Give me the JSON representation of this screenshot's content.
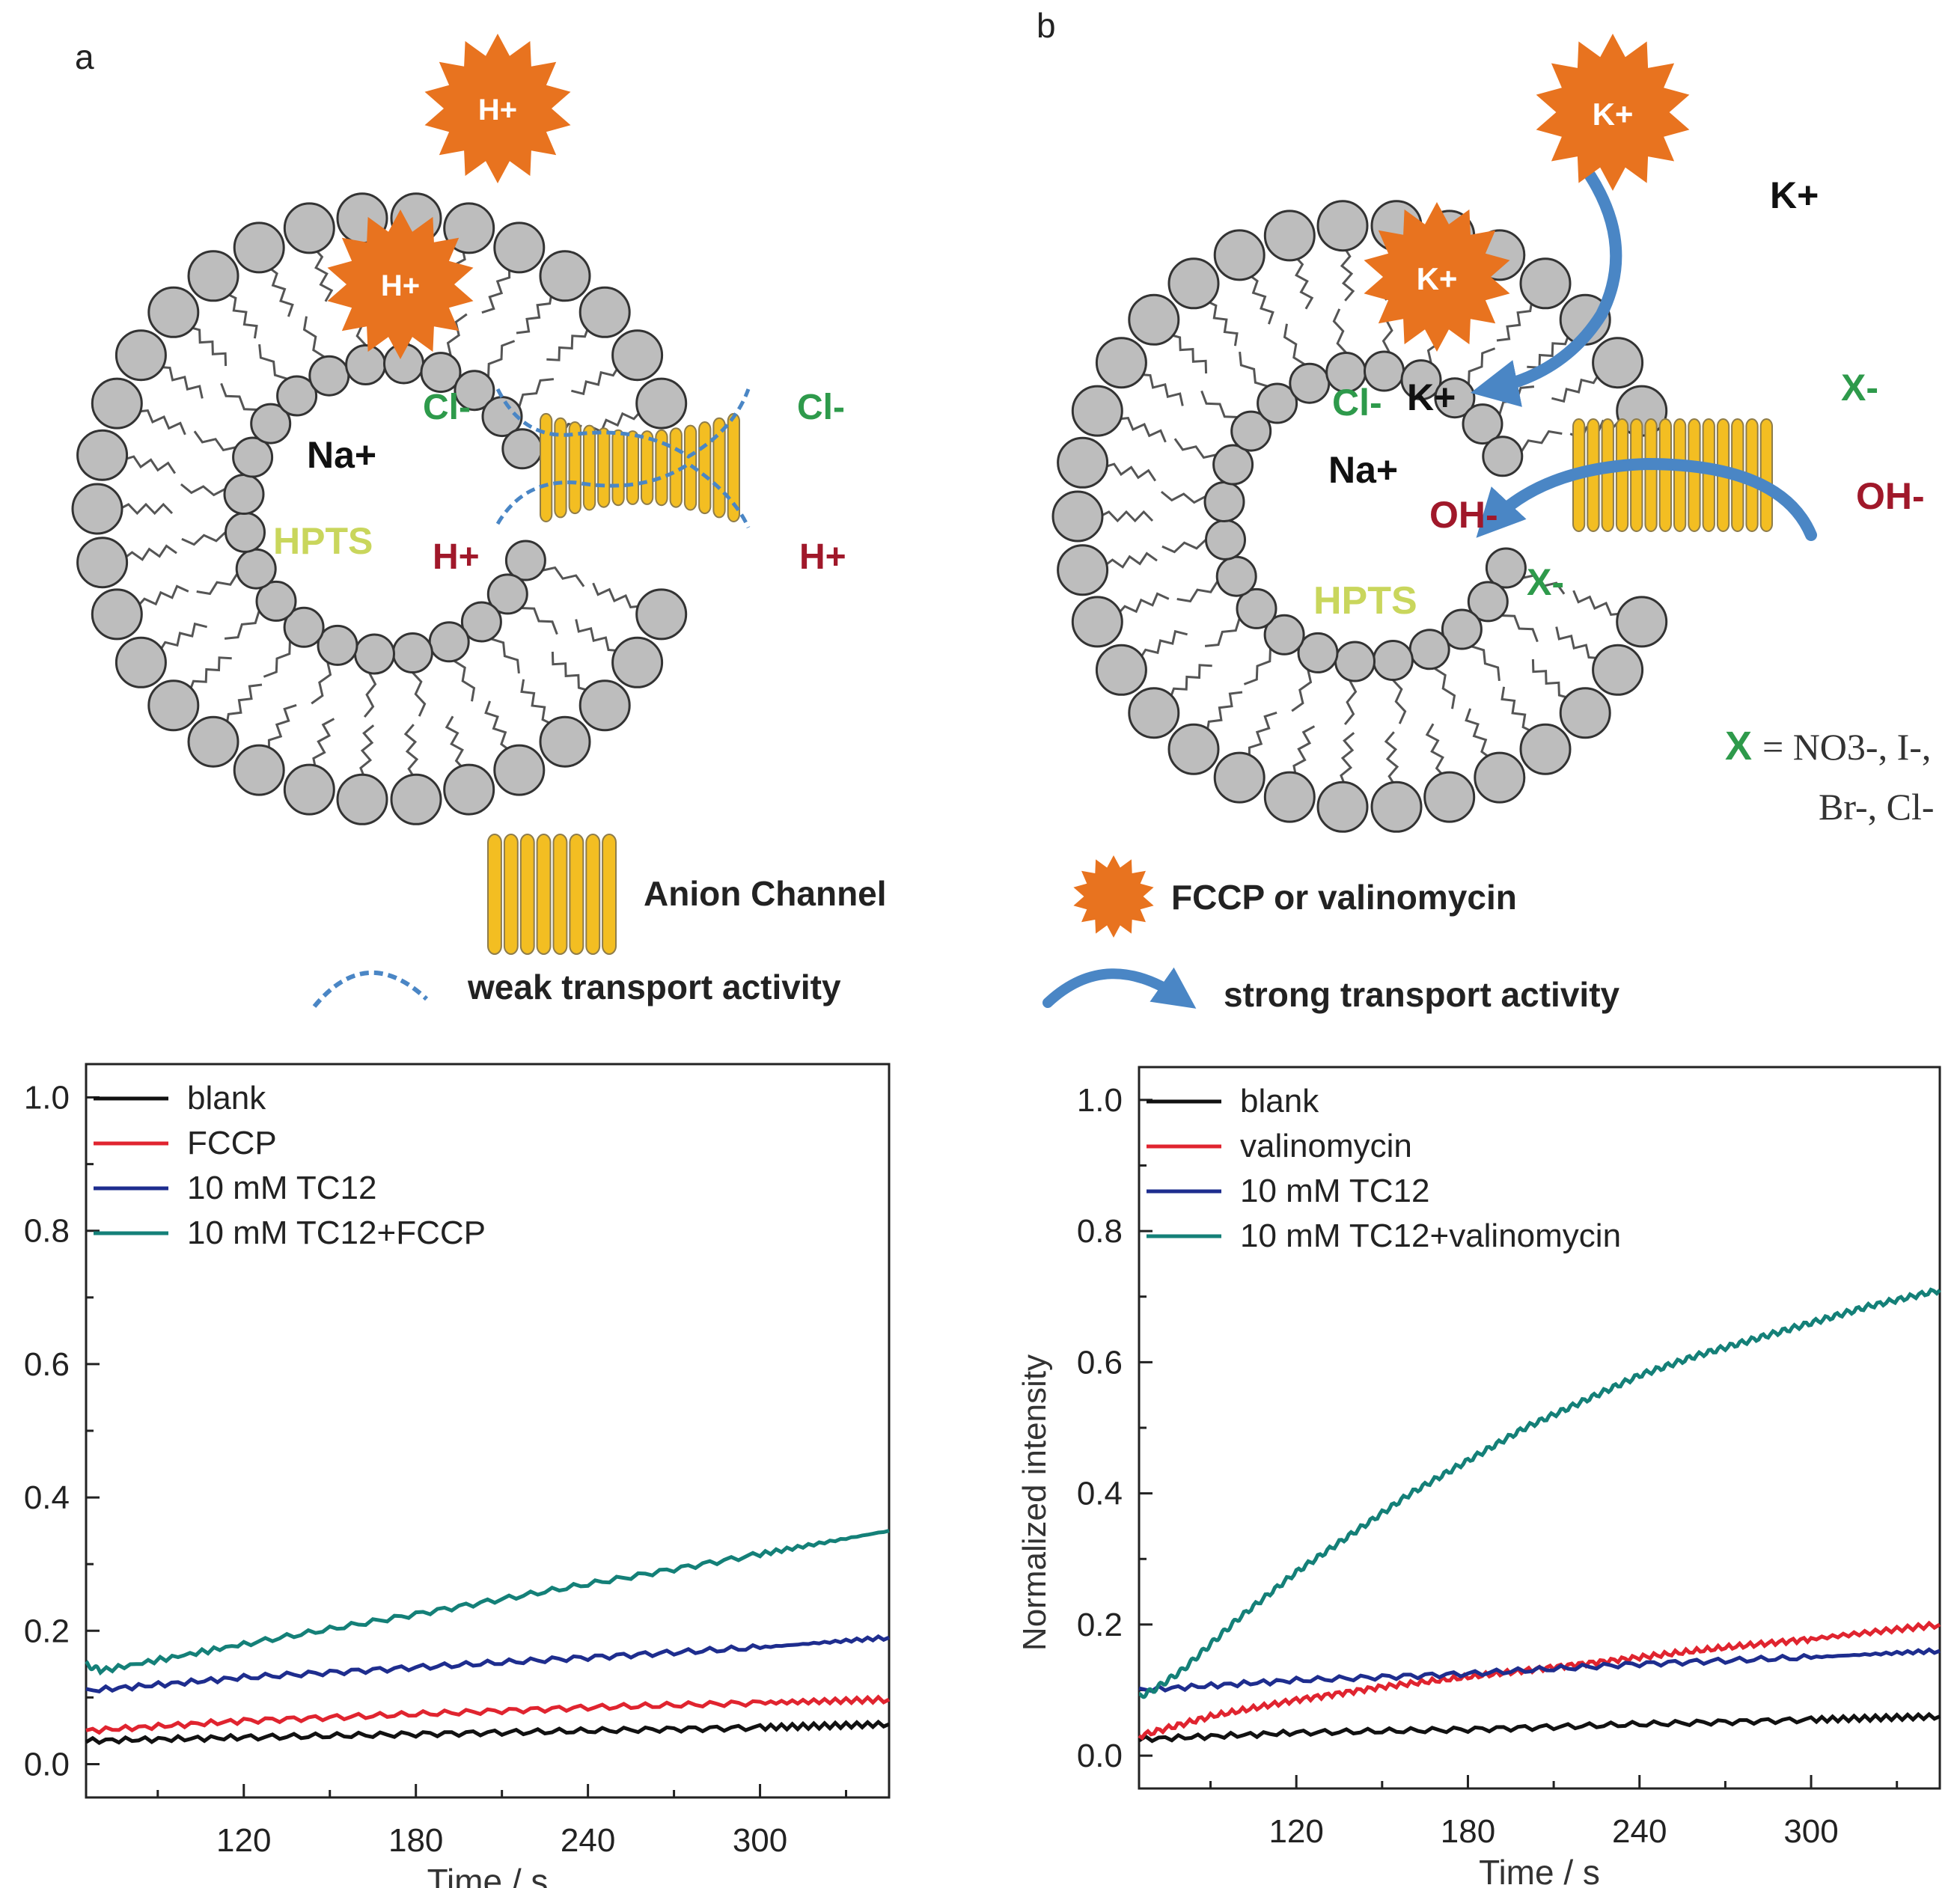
{
  "panel_a": {
    "label": "a",
    "carrier_outer": "H+",
    "carrier_inner": "H+",
    "ions": {
      "cl_in": "Cl-",
      "cl_out": "Cl-",
      "h_in": "H+",
      "h_out": "H+",
      "na": "Na+",
      "hpts": "HPTS"
    }
  },
  "panel_b": {
    "label": "b",
    "carrier_outer": "K+",
    "carrier_inner": "K+",
    "ions": {
      "k_out": "K+",
      "k_in": "K+",
      "cl_in": "Cl-",
      "x_out": "X-",
      "x_in": "X-",
      "oh_in": "OH-",
      "oh_out": "OH-",
      "na": "Na+",
      "hpts": "HPTS"
    },
    "x_def_lead": "X",
    "x_def_line1": "= NO3-, I-,",
    "x_def_line2": "Br-, Cl-"
  },
  "legend_keys": {
    "anion_channel": "Anion Channel",
    "carrier": "FCCP or valinomycin",
    "weak": "weak transport activity",
    "strong": "strong transport activity"
  },
  "colors": {
    "star": "#E8731F",
    "lipid_head": "#BDBDBD",
    "channel": "#F3BE22",
    "arrow": "#4A86C5",
    "green_ion": "#2E9A4B",
    "red_ion": "#A0182A",
    "hpts": "#C9D65C",
    "series_black": "#111111",
    "series_red": "#E0242F",
    "series_blue": "#1E2D8E",
    "series_teal": "#148078"
  },
  "chart_data": [
    {
      "type": "line",
      "title": "",
      "xlabel": "Time / s",
      "ylabel": "",
      "xlim": [
        65,
        345
      ],
      "ylim": [
        -0.05,
        1.05
      ],
      "xticks": [
        120,
        180,
        240,
        300
      ],
      "yticks": [
        0.0,
        0.2,
        0.4,
        0.6,
        0.8,
        1.0
      ],
      "xtick_labels": [
        "120",
        "180",
        "240",
        "300"
      ],
      "ytick_labels": [
        "0.0",
        "0.2",
        "0.4",
        "0.6",
        "0.8",
        "1.0"
      ],
      "legend_position": "top-left",
      "series": [
        {
          "name": "blank",
          "color": "#111111",
          "x": [
            65,
            120,
            180,
            240,
            300,
            345
          ],
          "y": [
            0.035,
            0.04,
            0.045,
            0.05,
            0.055,
            0.06
          ]
        },
        {
          "name": "FCCP",
          "color": "#E0242F",
          "x": [
            65,
            120,
            180,
            240,
            300,
            345
          ],
          "y": [
            0.05,
            0.065,
            0.075,
            0.085,
            0.092,
            0.097
          ]
        },
        {
          "name": "10 mM TC12",
          "color": "#1E2D8E",
          "x": [
            65,
            120,
            180,
            240,
            300,
            345
          ],
          "y": [
            0.11,
            0.13,
            0.145,
            0.16,
            0.175,
            0.19
          ]
        },
        {
          "name": "10 mM TC12+FCCP",
          "color": "#148078",
          "x": [
            65,
            70,
            120,
            180,
            240,
            300,
            345
          ],
          "y": [
            0.15,
            0.14,
            0.18,
            0.225,
            0.27,
            0.315,
            0.35
          ]
        }
      ]
    },
    {
      "type": "line",
      "title": "",
      "xlabel": "Time / s",
      "ylabel": "Normalized intensity",
      "xlim": [
        65,
        345
      ],
      "ylim": [
        -0.05,
        1.05
      ],
      "xticks": [
        120,
        180,
        240,
        300
      ],
      "yticks": [
        0.0,
        0.2,
        0.4,
        0.6,
        0.8,
        1.0
      ],
      "xtick_labels": [
        "120",
        "180",
        "240",
        "300"
      ],
      "ytick_labels": [
        "0.0",
        "0.2",
        "0.4",
        "0.6",
        "0.8",
        "1.0"
      ],
      "legend_position": "top-left",
      "series": [
        {
          "name": "blank",
          "color": "#111111",
          "x": [
            65,
            120,
            180,
            240,
            300,
            345
          ],
          "y": [
            0.025,
            0.035,
            0.04,
            0.048,
            0.055,
            0.06
          ]
        },
        {
          "name": "valinomycin",
          "color": "#E0242F",
          "x": [
            65,
            90,
            120,
            150,
            180,
            210,
            240,
            270,
            300,
            345
          ],
          "y": [
            0.03,
            0.06,
            0.085,
            0.105,
            0.12,
            0.135,
            0.15,
            0.165,
            0.178,
            0.2
          ]
        },
        {
          "name": "10 mM TC12",
          "color": "#1E2D8E",
          "x": [
            65,
            120,
            180,
            240,
            300,
            345
          ],
          "y": [
            0.1,
            0.115,
            0.125,
            0.14,
            0.15,
            0.16
          ]
        },
        {
          "name": "10 mM TC12+valinomycin",
          "color": "#148078",
          "x": [
            65,
            70,
            80,
            90,
            100,
            120,
            140,
            160,
            180,
            200,
            220,
            240,
            260,
            280,
            300,
            320,
            345
          ],
          "y": [
            0.09,
            0.1,
            0.13,
            0.17,
            0.21,
            0.28,
            0.34,
            0.4,
            0.45,
            0.5,
            0.54,
            0.58,
            0.61,
            0.635,
            0.66,
            0.685,
            0.71
          ]
        }
      ]
    }
  ]
}
